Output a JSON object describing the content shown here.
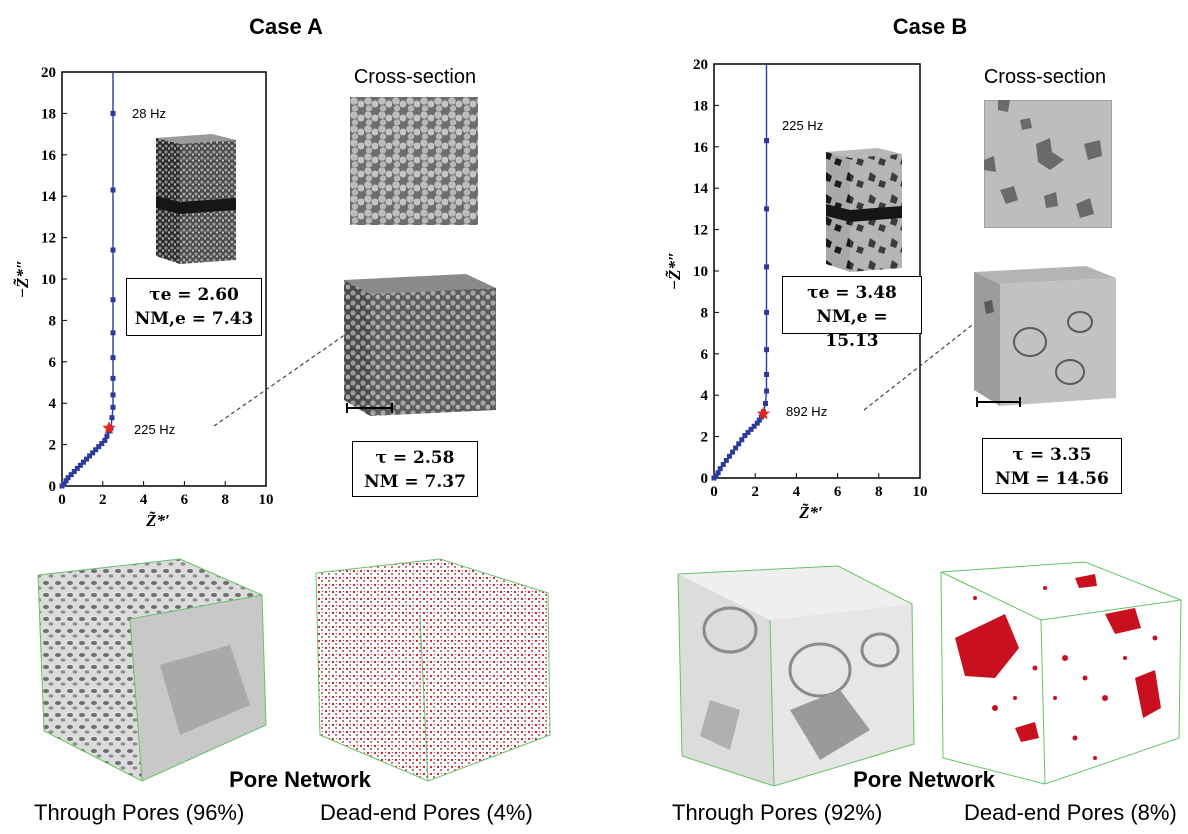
{
  "caseA": {
    "title": "Case A",
    "cross_section_label": "Cross-section",
    "freq_high": "28 Hz",
    "freq_star": "225 Hz",
    "eq_box_line1": "τe = 2.60",
    "eq_box_line2": "NM,e = 7.43",
    "tau_box_line1": "τ = 2.58",
    "tau_box_line2": "NM = 7.37",
    "through_pores": "Through Pores (96%)",
    "deadend_pores": "Dead-end Pores (4%)"
  },
  "caseB": {
    "title": "Case B",
    "cross_section_label": "Cross-section",
    "freq_high": "225 Hz",
    "freq_star": "892 Hz",
    "eq_box_line1": "τe = 3.48",
    "eq_box_line2": "NM,e = 15.13",
    "tau_box_line1": "τ = 3.35",
    "tau_box_line2": "NM = 14.56",
    "through_pores": "Through Pores (92%)",
    "deadend_pores": "Dead-end Pores (8%)"
  },
  "pore_network_title": "Pore Network",
  "chart_data": [
    {
      "type": "scatter",
      "title": "Case A",
      "xlabel": "Z̃*′",
      "ylabel": "−Z̃*″",
      "xlim": [
        0,
        10
      ],
      "ylim": [
        0,
        20
      ],
      "xticks": [
        "0",
        "2",
        "4",
        "6",
        "8",
        "10"
      ],
      "yticks": [
        "0",
        "2",
        "4",
        "6",
        "8",
        "10",
        "12",
        "14",
        "16",
        "18",
        "20"
      ],
      "series": [
        {
          "color": "#2b3a9b",
          "x": [
            0.0,
            0.1,
            0.2,
            0.3,
            0.45,
            0.6,
            0.75,
            0.9,
            1.05,
            1.2,
            1.35,
            1.5,
            1.65,
            1.8,
            1.95,
            2.1,
            2.2,
            2.3,
            2.4,
            2.45,
            2.5,
            2.5,
            2.5,
            2.5,
            2.5,
            2.5,
            2.5,
            2.5,
            2.5
          ],
          "y": [
            0.0,
            0.1,
            0.25,
            0.4,
            0.55,
            0.7,
            0.85,
            1.0,
            1.15,
            1.3,
            1.45,
            1.6,
            1.75,
            1.9,
            2.05,
            2.2,
            2.4,
            2.65,
            2.8,
            3.3,
            3.8,
            4.4,
            5.2,
            6.2,
            7.4,
            9.0,
            11.4,
            14.3,
            18.0
          ]
        }
      ],
      "star_point": [
        2.3,
        2.8
      ],
      "star_color": "#e8221c"
    },
    {
      "type": "scatter",
      "title": "Case B",
      "xlabel": "Z̃*′",
      "ylabel": "−Z̃*″",
      "xlim": [
        0,
        10
      ],
      "ylim": [
        0,
        20
      ],
      "xticks": [
        "0",
        "2",
        "4",
        "6",
        "8",
        "10"
      ],
      "yticks": [
        "0",
        "2",
        "4",
        "6",
        "8",
        "10",
        "12",
        "14",
        "16",
        "18",
        "20"
      ],
      "series": [
        {
          "color": "#2b3a9b",
          "x": [
            0.0,
            0.1,
            0.2,
            0.3,
            0.45,
            0.6,
            0.75,
            0.9,
            1.05,
            1.2,
            1.35,
            1.5,
            1.65,
            1.8,
            1.95,
            2.1,
            2.2,
            2.3,
            2.4,
            2.5,
            2.55,
            2.55,
            2.55,
            2.55,
            2.55,
            2.55,
            2.55,
            2.55
          ],
          "y": [
            0.0,
            0.1,
            0.25,
            0.45,
            0.65,
            0.85,
            1.05,
            1.25,
            1.45,
            1.65,
            1.85,
            2.05,
            2.2,
            2.35,
            2.5,
            2.65,
            2.8,
            2.95,
            3.2,
            3.6,
            4.2,
            5.0,
            6.2,
            8.0,
            10.2,
            13.0,
            16.3,
            16.3
          ]
        }
      ],
      "star_point": [
        2.4,
        3.1
      ],
      "star_color": "#e8221c"
    }
  ]
}
